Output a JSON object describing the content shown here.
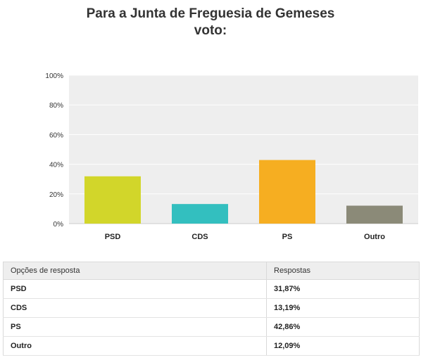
{
  "title_line1": "Para a Junta de Freguesia de Gemeses",
  "title_line2": "voto:",
  "chart_data": {
    "type": "bar",
    "categories": [
      "PSD",
      "CDS",
      "PS",
      "Outro"
    ],
    "values": [
      31.87,
      13.19,
      42.86,
      12.09
    ],
    "colors": [
      "#d2d62a",
      "#33bfbf",
      "#f6ae21",
      "#8b8a78"
    ],
    "yticks": [
      "0%",
      "20%",
      "40%",
      "60%",
      "80%",
      "100%"
    ],
    "ylim": [
      0,
      100
    ],
    "grid": true,
    "background": "#eeeeee"
  },
  "table": {
    "headers": [
      "Opções de resposta",
      "Respostas"
    ],
    "rows": [
      [
        "PSD",
        "31,87%"
      ],
      [
        "CDS",
        "13,19%"
      ],
      [
        "PS",
        "42,86%"
      ],
      [
        "Outro",
        "12,09%"
      ]
    ]
  }
}
